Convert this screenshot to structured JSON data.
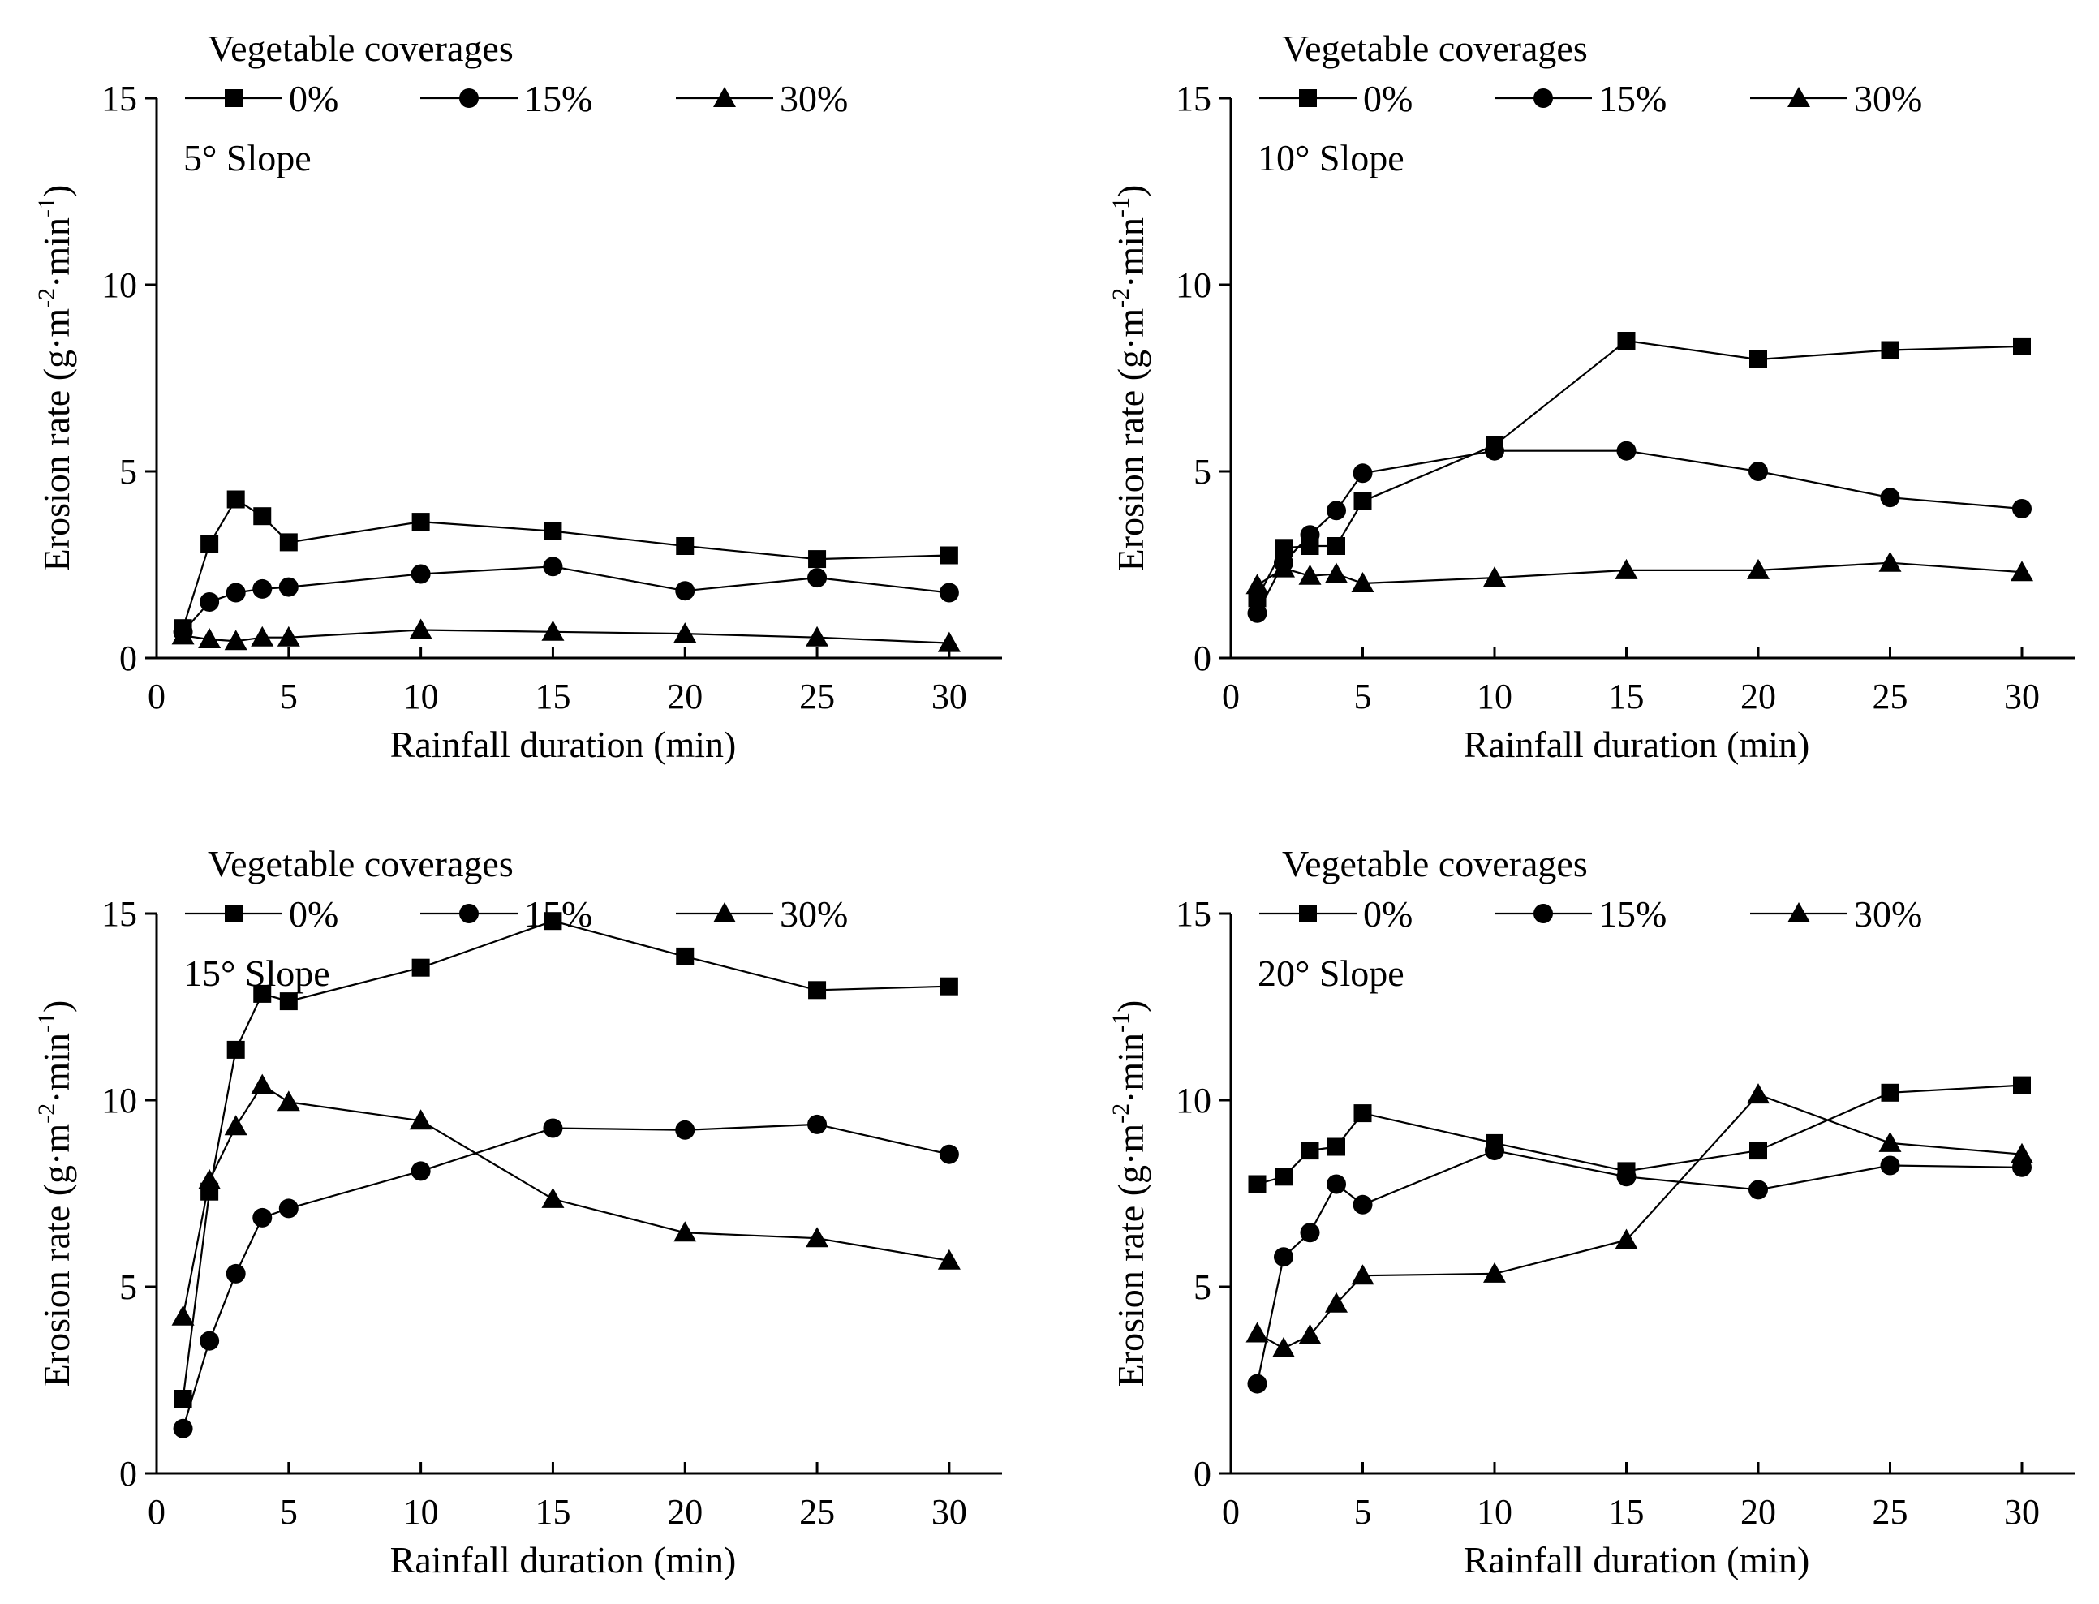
{
  "figure": {
    "legend_title": "Vegetable coverages",
    "series_names": [
      "0%",
      "15%",
      "30%"
    ],
    "series_markers": [
      "square-marker",
      "circle-marker",
      "triangle-marker"
    ],
    "xlabel": "Rainfall duration (min)",
    "ylabel_main": "Erosion rate (g·m",
    "ylabel_sup1": "-2",
    "ylabel_mid": "·min",
    "ylabel_sup2": "-1",
    "ylabel_end": ")",
    "line_color": "#000000"
  },
  "chart_data": [
    {
      "type": "line",
      "title": "5° Slope",
      "xlabel": "Rainfall duration (min)",
      "ylabel": "Erosion rate (g·m-2·min-1)",
      "xlim": [
        0,
        32
      ],
      "ylim": [
        0,
        15
      ],
      "xticks": [
        0,
        5,
        10,
        15,
        20,
        25,
        30
      ],
      "yticks": [
        0,
        5,
        10,
        15
      ],
      "x": [
        1,
        2,
        3,
        4,
        5,
        10,
        15,
        20,
        25,
        30
      ],
      "series": [
        {
          "name": "0%",
          "values": [
            0.8,
            3.05,
            4.25,
            3.8,
            3.1,
            3.65,
            3.4,
            3.0,
            2.65,
            2.75
          ]
        },
        {
          "name": "15%",
          "values": [
            0.7,
            1.5,
            1.75,
            1.85,
            1.9,
            2.25,
            2.45,
            1.8,
            2.15,
            1.75
          ]
        },
        {
          "name": "30%",
          "values": [
            0.6,
            0.5,
            0.45,
            0.55,
            0.55,
            0.75,
            0.7,
            0.65,
            0.55,
            0.4
          ]
        }
      ]
    },
    {
      "type": "line",
      "title": "10° Slope",
      "xlabel": "Rainfall duration (min)",
      "ylabel": "Erosion rate (g·m-2·min-1)",
      "xlim": [
        0,
        32
      ],
      "ylim": [
        0,
        15
      ],
      "xticks": [
        0,
        5,
        10,
        15,
        20,
        25,
        30
      ],
      "yticks": [
        0,
        5,
        10,
        15
      ],
      "x": [
        1,
        2,
        3,
        4,
        5,
        10,
        15,
        20,
        25,
        30
      ],
      "series": [
        {
          "name": "0%",
          "values": [
            1.6,
            2.95,
            3.0,
            3.0,
            4.2,
            5.7,
            8.5,
            8.0,
            8.25,
            8.35
          ]
        },
        {
          "name": "15%",
          "values": [
            1.2,
            2.55,
            3.3,
            3.95,
            4.95,
            5.55,
            5.55,
            5.0,
            4.3,
            4.0
          ]
        },
        {
          "name": "30%",
          "values": [
            1.95,
            2.4,
            2.2,
            2.25,
            2.0,
            2.15,
            2.35,
            2.35,
            2.55,
            2.3
          ]
        }
      ]
    },
    {
      "type": "line",
      "title": "15° Slope",
      "xlabel": "Rainfall duration (min)",
      "ylabel": "Erosion rate (g·m-2·min-1)",
      "xlim": [
        0,
        32
      ],
      "ylim": [
        0,
        15
      ],
      "xticks": [
        0,
        5,
        10,
        15,
        20,
        25,
        30
      ],
      "yticks": [
        0,
        5,
        10,
        15
      ],
      "x": [
        1,
        2,
        3,
        4,
        5,
        10,
        15,
        20,
        25,
        30
      ],
      "series": [
        {
          "name": "0%",
          "values": [
            2.0,
            7.55,
            11.35,
            12.85,
            12.65,
            13.55,
            14.8,
            13.85,
            12.95,
            13.05
          ]
        },
        {
          "name": "15%",
          "values": [
            1.2,
            3.55,
            5.35,
            6.85,
            7.1,
            8.1,
            9.25,
            9.2,
            9.35,
            8.55
          ]
        },
        {
          "name": "30%",
          "values": [
            4.2,
            7.85,
            9.3,
            10.4,
            9.95,
            9.45,
            7.35,
            6.45,
            6.3,
            5.7
          ]
        }
      ]
    },
    {
      "type": "line",
      "title": "20° Slope",
      "xlabel": "Rainfall duration (min)",
      "ylabel": "Erosion rate (g·m-2·min-1)",
      "xlim": [
        0,
        32
      ],
      "ylim": [
        0,
        15
      ],
      "xticks": [
        0,
        5,
        10,
        15,
        20,
        25,
        30
      ],
      "yticks": [
        0,
        5,
        10,
        15
      ],
      "x": [
        1,
        2,
        3,
        4,
        5,
        10,
        15,
        20,
        25,
        30
      ],
      "series": [
        {
          "name": "0%",
          "values": [
            7.75,
            7.95,
            8.65,
            8.75,
            9.65,
            8.85,
            8.1,
            8.65,
            10.2,
            10.4
          ]
        },
        {
          "name": "15%",
          "values": [
            2.4,
            5.8,
            6.45,
            7.75,
            7.2,
            8.65,
            7.95,
            7.6,
            8.25,
            8.2
          ]
        },
        {
          "name": "30%",
          "values": [
            3.75,
            3.35,
            3.7,
            4.55,
            5.3,
            5.35,
            6.25,
            10.15,
            8.85,
            8.55
          ]
        }
      ]
    }
  ]
}
